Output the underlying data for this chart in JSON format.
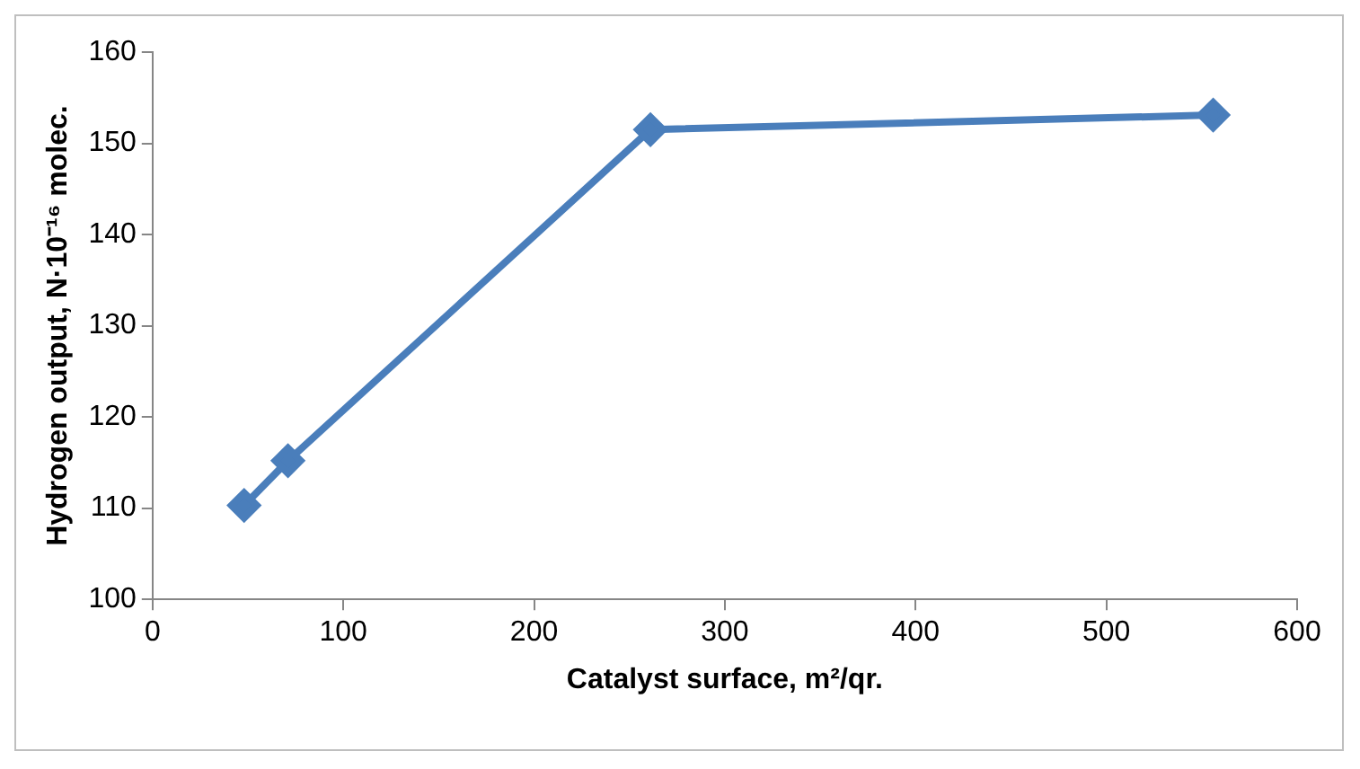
{
  "chart_data": {
    "type": "line",
    "xlabel": "Catalyst surface, m²/qr.",
    "ylabel": "Hydrogen output, N·10⁻¹⁶ molec.",
    "x": [
      48,
      71,
      261,
      556
    ],
    "series": [
      {
        "color": "#4a7ebb",
        "values": [
          110.3,
          115.2,
          151.5,
          153.1
        ]
      }
    ],
    "xlim": [
      0,
      600
    ],
    "xticks": [
      0,
      100,
      200,
      300,
      400,
      500,
      600
    ],
    "ylim": [
      100,
      160
    ],
    "yticks": [
      100,
      110,
      120,
      130,
      140,
      150,
      160
    ],
    "grid": false,
    "legend": false,
    "marker": "diamond",
    "line_style": "solid"
  }
}
